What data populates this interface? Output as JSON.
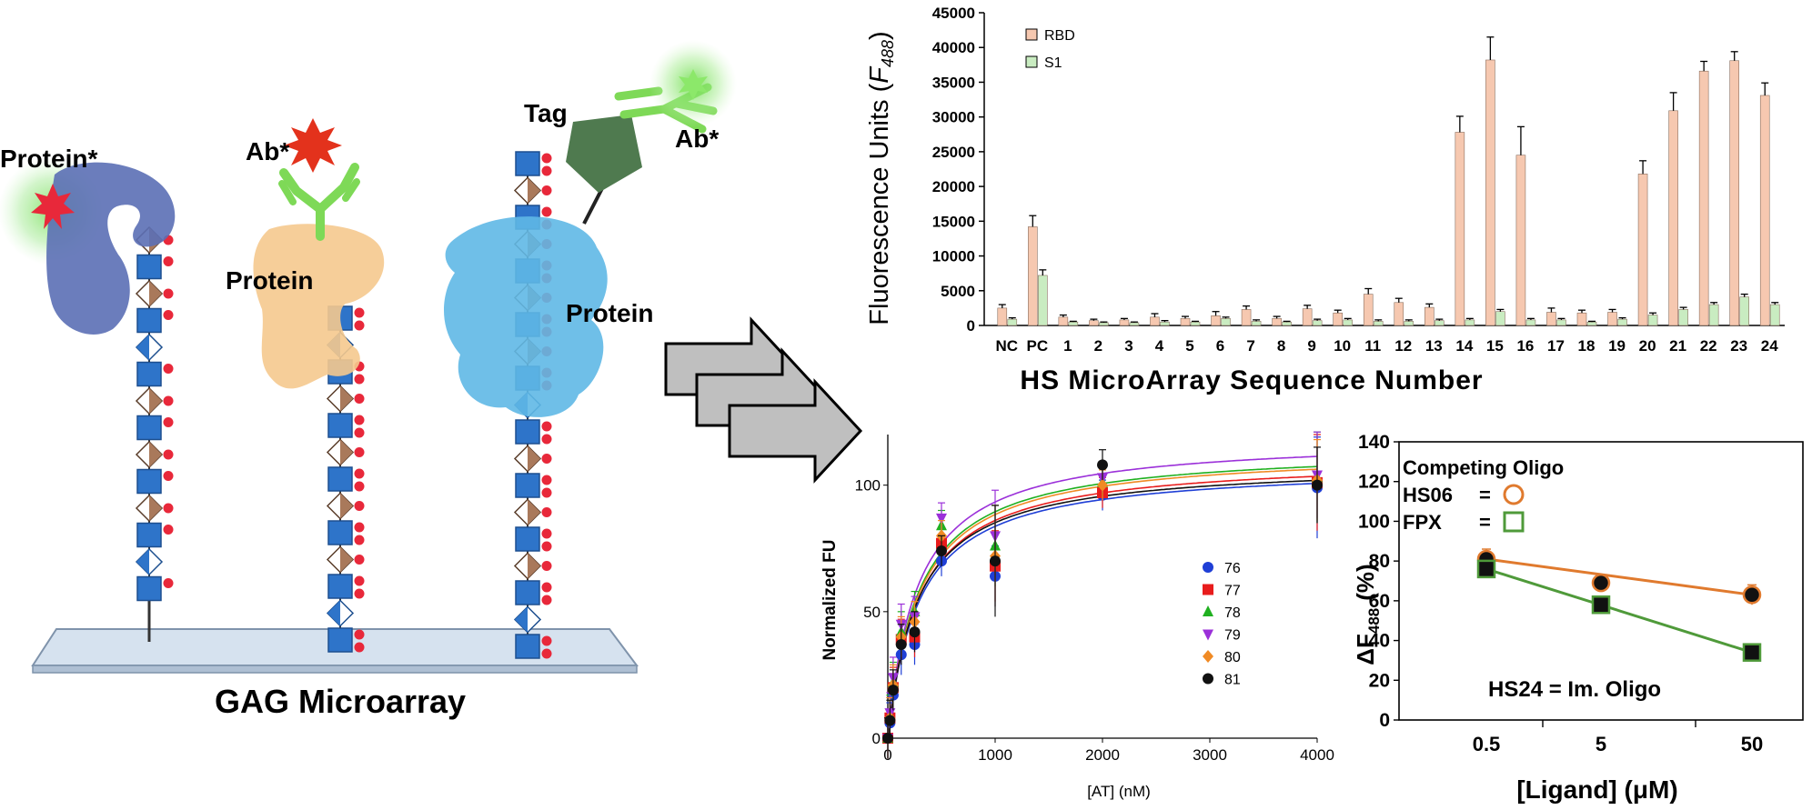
{
  "schematic": {
    "title": "GAG Microarray",
    "labels": {
      "protein_star": "Protein*",
      "ab_star_1": "Ab*",
      "protein_1": "Protein",
      "tag": "Tag",
      "ab_star_2": "Ab*",
      "protein_2": "Protein"
    },
    "colors": {
      "glycan_blue": "#2e74c9",
      "glycan_brown": "#a9795b",
      "sulfate_red": "#e8283a",
      "protein_purple": "#5b6fb5",
      "protein_peach": "#f5c98e",
      "protein_cyan": "#5fb8e6",
      "antibody_green": "#7ed957",
      "tag_green": "#4f7a4f"
    }
  },
  "chart_data": [
    {
      "type": "bar",
      "ylabel_main": "Fluorescence Units (",
      "ylabel_var": "F",
      "ylabel_sub": "488",
      "ylabel_close": ")",
      "xlabel": "HS MicroArray Sequence Number",
      "ylim": [
        0,
        45000
      ],
      "yticks": [
        "0",
        "5000",
        "10000",
        "15000",
        "20000",
        "25000",
        "30000",
        "35000",
        "40000",
        "45000"
      ],
      "categories": [
        "NC",
        "PC",
        "1",
        "2",
        "3",
        "4",
        "5",
        "6",
        "7",
        "8",
        "9",
        "10",
        "11",
        "12",
        "13",
        "14",
        "15",
        "16",
        "17",
        "18",
        "19",
        "20",
        "21",
        "22",
        "23",
        "24"
      ],
      "legend_position": "top-left",
      "series": [
        {
          "name": "RBD",
          "color": "#f6c8b0",
          "values": [
            2500,
            14200,
            1200,
            700,
            800,
            1200,
            1000,
            1400,
            2300,
            1000,
            2400,
            1800,
            4500,
            3300,
            2600,
            27800,
            38200,
            24500,
            1900,
            1800,
            1900,
            21800,
            30900,
            36600,
            38100,
            33100
          ],
          "errors": [
            500,
            1600,
            300,
            200,
            200,
            500,
            300,
            600,
            500,
            300,
            500,
            400,
            800,
            600,
            500,
            2300,
            3300,
            4100,
            600,
            400,
            400,
            1900,
            2600,
            1400,
            1300,
            1800
          ]
        },
        {
          "name": "S1",
          "color": "#c9ecc1",
          "values": [
            900,
            7200,
            500,
            400,
            400,
            500,
            500,
            1000,
            600,
            500,
            700,
            800,
            600,
            600,
            700,
            800,
            2000,
            800,
            800,
            500,
            900,
            1500,
            2300,
            3000,
            4100,
            3000
          ],
          "errors": [
            200,
            800,
            100,
            100,
            100,
            200,
            100,
            200,
            200,
            100,
            200,
            200,
            200,
            200,
            200,
            200,
            300,
            200,
            200,
            100,
            200,
            300,
            300,
            300,
            400,
            300
          ]
        }
      ]
    },
    {
      "type": "scatter",
      "ylabel": "Normalized FU",
      "xlabel": "[AT] (nM)",
      "xlim": [
        0,
        4000
      ],
      "ylim": [
        0,
        120
      ],
      "xticks": [
        "0",
        "1000",
        "2000",
        "3000",
        "4000"
      ],
      "yticks": [
        "0",
        "50",
        "100"
      ],
      "x": [
        0,
        20,
        50,
        125,
        250,
        500,
        1000,
        2000,
        4000
      ],
      "series": [
        {
          "name": "76",
          "color": "#1f3fd6",
          "marker": "circle",
          "values": [
            0,
            6,
            17,
            33,
            37,
            70,
            64,
            96,
            99
          ],
          "fit": {
            "Bmax": 108,
            "Kd": 290
          }
        },
        {
          "name": "77",
          "color": "#e81c1c",
          "marker": "square",
          "values": [
            0,
            8,
            20,
            39,
            40,
            77,
            68,
            97,
            101
          ],
          "fit": {
            "Bmax": 111,
            "Kd": 290
          }
        },
        {
          "name": "78",
          "color": "#20b020",
          "marker": "triangle-up",
          "values": [
            0,
            9,
            22,
            42,
            50,
            84,
            76,
            101,
            103
          ],
          "fit": {
            "Bmax": 115,
            "Kd": 285
          }
        },
        {
          "name": "79",
          "color": "#9b30d9",
          "marker": "triangle-down",
          "values": [
            0,
            10,
            24,
            45,
            48,
            87,
            80,
            103,
            104
          ],
          "fit": {
            "Bmax": 119,
            "Kd": 275
          }
        },
        {
          "name": "80",
          "color": "#f08a24",
          "marker": "diamond",
          "values": [
            0,
            8,
            21,
            40,
            46,
            80,
            72,
            100,
            102
          ],
          "fit": {
            "Bmax": 114,
            "Kd": 290
          }
        },
        {
          "name": "81",
          "color": "#111111",
          "marker": "circle",
          "values": [
            0,
            7,
            19,
            37,
            42,
            74,
            70,
            108,
            100
          ],
          "fit": {
            "Bmax": 109,
            "Kd": 280
          }
        }
      ]
    },
    {
      "type": "line",
      "ylabel_delta": "ΔF",
      "ylabel_sub": "488",
      "ylabel_unit": "(%)",
      "xlabel": "[Ligand]  (μM)",
      "ylim": [
        0,
        140
      ],
      "yticks": [
        "0",
        "20",
        "40",
        "60",
        "80",
        "100",
        "120",
        "140"
      ],
      "categories": [
        "0.5",
        "5",
        "50"
      ],
      "legend_title": "Competing Oligo",
      "legend_eq": "=",
      "annotation": "HS24 = Im. Oligo",
      "series": [
        {
          "name": "HS06",
          "color": "#e07a2e",
          "marker": "circle",
          "values": [
            81,
            69,
            63
          ],
          "errors": [
            5,
            4,
            5
          ]
        },
        {
          "name": "FPX",
          "color": "#4f9a3a",
          "marker": "square",
          "values": [
            76,
            58,
            34
          ],
          "errors": [
            4,
            4,
            3
          ]
        }
      ]
    }
  ]
}
